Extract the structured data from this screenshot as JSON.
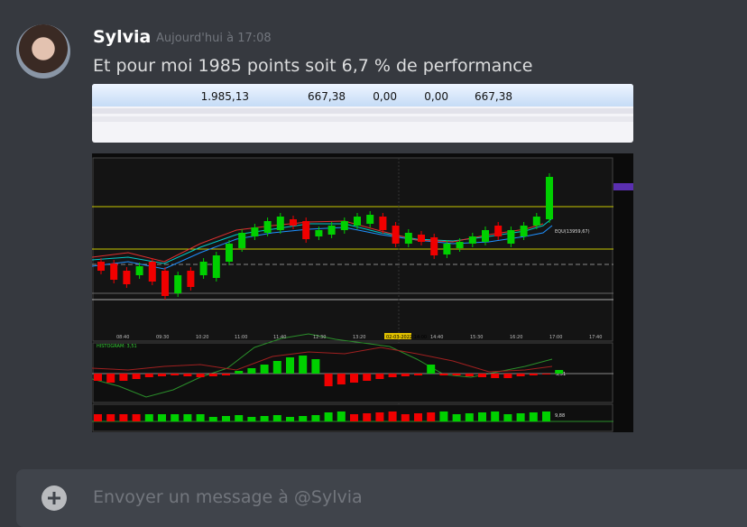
{
  "message": {
    "author": "Sylvia",
    "timestamp": "Aujourd'hui à 17:08",
    "text": "Et pour moi 1985 points soit 6,7 % de performance"
  },
  "table": {
    "rows": [
      [
        "1.985,13",
        "667,38",
        "0,00",
        "0,00",
        "667,38"
      ]
    ]
  },
  "chart_image": {
    "time_labels": [
      "08:40",
      "09:30",
      "10:20",
      "11:00",
      "11:40",
      "12:30",
      "13:20",
      "02-03-2022 14:00",
      "14:40",
      "15:30",
      "16:20",
      "17:00",
      "17:40"
    ],
    "equity_label": "EQU(13959,67)",
    "histogram_title": "HISTOGRAM: 3,51",
    "histogram_value": "3,51",
    "lower_value": "9,88"
  },
  "composer": {
    "placeholder": "Envoyer un message à @Sylvia"
  }
}
